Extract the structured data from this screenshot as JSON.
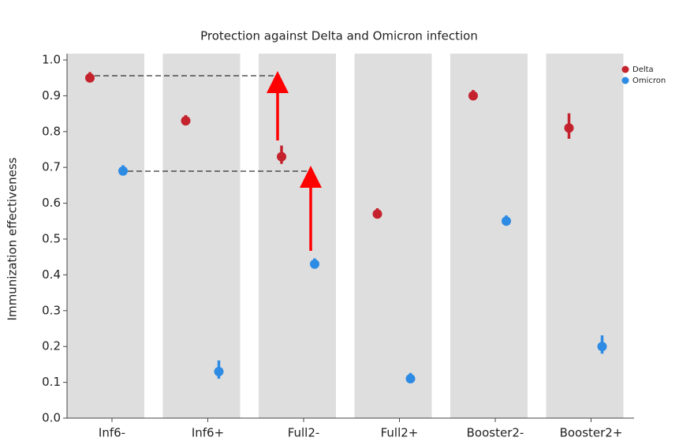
{
  "chart_data": {
    "type": "scatter",
    "title": "Protection against Delta and Omicron infection",
    "y_label": "Immunization effectiveness",
    "categories": [
      "Inf6-",
      "Inf6+",
      "Full2-",
      "Full2+",
      "Booster2-",
      "Booster2+"
    ],
    "series": [
      {
        "name": "Delta",
        "color": "#c4222c",
        "values": [
          0.95,
          0.83,
          0.73,
          0.57,
          0.9,
          0.81
        ],
        "errors": [
          0.005,
          0.005,
          0.02,
          0.005,
          0.005,
          0.03
        ]
      },
      {
        "name": "Omicron",
        "color": "#2d8be4",
        "values": [
          0.69,
          0.13,
          0.43,
          0.11,
          0.55,
          0.2
        ],
        "errors": [
          0.005,
          0.02,
          0.005,
          0.005,
          0.005,
          0.02
        ]
      }
    ],
    "ylim": [
      0,
      1
    ],
    "yticks": [
      {
        "value": 0,
        "label": "0.0"
      },
      0.1,
      0.2,
      0.3,
      0.4,
      0.5,
      0.6,
      0.7,
      0.8,
      0.9,
      {
        "value": 1,
        "label": "1.0"
      }
    ],
    "legend": "upper right"
  }
}
